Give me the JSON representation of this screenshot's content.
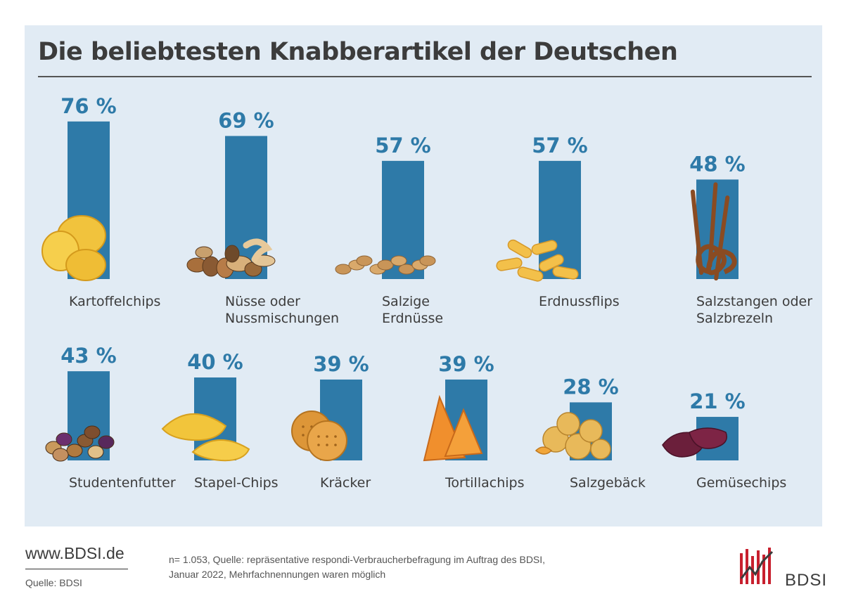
{
  "title": "Die beliebtesten Knabberartikel der Deutschen",
  "footer": {
    "website": "www.BDSI.de",
    "source": "Quelle: BDSI",
    "note_line1": "n= 1.053, Quelle: repräsentative respondi-Verbraucherbefragung im Auftrag des BDSI,",
    "note_line2": "Januar 2022, Mehrfachnennungen waren möglich",
    "brand": "BDSI"
  },
  "colors": {
    "bar": "#2e7aa8",
    "value_label": "#2e7aa8",
    "panel": "#e1ebf4",
    "logo_red": "#c8202e"
  },
  "chart_data": {
    "type": "bar",
    "unit": "%",
    "ylim": [
      0,
      100
    ],
    "rows": [
      {
        "categories": [
          "Kartoffelchips",
          "Nüsse oder Nussmischungen",
          "Salzige Erdnüsse",
          "Erdnussflips",
          "Salzstangen oder Salzbrezeln"
        ],
        "label_lines": [
          [
            "Kartoffelchips"
          ],
          [
            "Nüsse oder",
            "Nussmischungen"
          ],
          [
            "Salzige",
            "Erdnüsse"
          ],
          [
            "Erdnussflips"
          ],
          [
            "Salzstangen oder",
            "Salzbrezeln"
          ]
        ],
        "values": [
          76,
          69,
          57,
          57,
          48
        ],
        "value_labels": [
          "76 %",
          "69 %",
          "57 %",
          "57 %",
          "48 %"
        ],
        "icons": [
          "potato-chips-icon",
          "mixed-nuts-icon",
          "peanuts-icon",
          "peanut-flips-icon",
          "pretzel-sticks-icon"
        ]
      },
      {
        "categories": [
          "Studentenfutter",
          "Stapel-Chips",
          "Kräcker",
          "Tortillachips",
          "Salzgebäck",
          "Gemüsechips"
        ],
        "label_lines": [
          [
            "Studentenfutter"
          ],
          [
            "Stapel-Chips"
          ],
          [
            "Kräcker"
          ],
          [
            "Tortillachips"
          ],
          [
            "Salzgebäck"
          ],
          [
            "Gemüsechips"
          ]
        ],
        "values": [
          43,
          40,
          39,
          39,
          28,
          21
        ],
        "value_labels": [
          "43 %",
          "40 %",
          "39 %",
          "39 %",
          "28 %",
          "21 %"
        ],
        "icons": [
          "trail-mix-icon",
          "stacked-chips-icon",
          "crackers-icon",
          "tortilla-chips-icon",
          "salty-snacks-icon",
          "vegetable-chips-icon"
        ]
      }
    ]
  }
}
